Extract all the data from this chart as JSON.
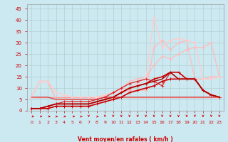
{
  "x": [
    0,
    1,
    2,
    3,
    4,
    5,
    6,
    7,
    8,
    9,
    10,
    11,
    12,
    13,
    14,
    15,
    16,
    17,
    18,
    19,
    20,
    21,
    22,
    23
  ],
  "series": [
    {
      "y": [
        6,
        6,
        6,
        6,
        6,
        6,
        6,
        6,
        6,
        6,
        6,
        6,
        6,
        6,
        6,
        6,
        6,
        6,
        6,
        6,
        6,
        6,
        6,
        6
      ],
      "color": "#ff9999",
      "lw": 1.0,
      "marker": null
    },
    {
      "y": [
        6,
        13,
        13,
        5,
        5,
        5,
        5,
        5,
        6,
        6,
        6,
        8,
        9,
        9,
        9,
        28,
        31,
        27,
        30,
        31,
        14,
        14,
        15,
        15
      ],
      "color": "#ffbbbb",
      "lw": 0.9,
      "marker": "D",
      "ms": 1.5
    },
    {
      "y": [
        6,
        13,
        13,
        5,
        5,
        5,
        5,
        5,
        6,
        7,
        8,
        10,
        13,
        14,
        15,
        20,
        24,
        23,
        25,
        27,
        28,
        28,
        30,
        15
      ],
      "color": "#ffbbbb",
      "lw": 0.9,
      "marker": "D",
      "ms": 1.5
    },
    {
      "y": [
        6,
        13,
        13,
        8,
        7,
        6,
        6,
        6,
        6,
        7,
        8,
        9,
        10,
        12,
        14,
        41,
        28,
        31,
        32,
        31,
        30,
        14,
        14,
        15
      ],
      "color": "#ffcccc",
      "lw": 0.9,
      "marker": "D",
      "ms": 1.5
    },
    {
      "y": [
        1,
        1,
        1,
        2,
        2,
        2,
        2,
        2,
        3,
        4,
        5,
        6,
        8,
        9,
        10,
        11,
        13,
        14,
        14,
        14,
        14,
        9,
        7,
        6
      ],
      "color": "#cc0000",
      "lw": 1.2,
      "marker": "+",
      "ms": 3
    },
    {
      "y": [
        1,
        1,
        2,
        3,
        3,
        3,
        3,
        3,
        4,
        5,
        6,
        8,
        10,
        11,
        12,
        14,
        15,
        17,
        17,
        14,
        14,
        9,
        7,
        6
      ],
      "color": "#cc0000",
      "lw": 1.2,
      "marker": "+",
      "ms": 3
    },
    {
      "y": [
        1,
        1,
        2,
        3,
        4,
        4,
        4,
        4,
        5,
        6,
        8,
        10,
        12,
        13,
        14,
        13,
        11,
        17,
        14,
        14,
        14,
        9,
        7,
        6
      ],
      "color": "#dd2222",
      "lw": 0.9,
      "marker": "+",
      "ms": 2.5
    },
    {
      "y": [
        1,
        1,
        2,
        3,
        3,
        3,
        3,
        3,
        4,
        5,
        6,
        8,
        10,
        11,
        12,
        13,
        14,
        17,
        14,
        14,
        14,
        9,
        7,
        6
      ],
      "color": "#aa0000",
      "lw": 1.0,
      "marker": null
    },
    {
      "y": [
        6,
        6,
        6,
        5,
        5,
        5,
        5,
        5,
        5,
        6,
        6,
        6,
        6,
        6,
        6,
        6,
        6,
        6,
        6,
        6,
        6,
        6,
        6,
        6
      ],
      "color": "#cc3333",
      "lw": 0.8,
      "marker": null
    }
  ],
  "arrow_angles": [
    0,
    0,
    0,
    -45,
    -45,
    0,
    -45,
    -90,
    -45,
    -90,
    -90,
    -90,
    -90,
    -90,
    -90,
    -90,
    -90,
    -90,
    -90,
    -90,
    -90,
    -90,
    -90,
    -90
  ],
  "xlabel": "Vent moyen/en rafales ( km/h )",
  "ylim": [
    0,
    47
  ],
  "xlim": [
    -0.5,
    23.5
  ],
  "yticks": [
    0,
    5,
    10,
    15,
    20,
    25,
    30,
    35,
    40,
    45
  ],
  "xticks": [
    0,
    1,
    2,
    3,
    4,
    5,
    6,
    7,
    8,
    9,
    10,
    11,
    12,
    13,
    14,
    15,
    16,
    17,
    18,
    19,
    20,
    21,
    22,
    23
  ],
  "bg_color": "#cce8f0",
  "grid_color": "#aacccc",
  "tick_label_color": "#cc0000",
  "xlabel_color": "#cc0000",
  "arrow_color": "#cc0000"
}
